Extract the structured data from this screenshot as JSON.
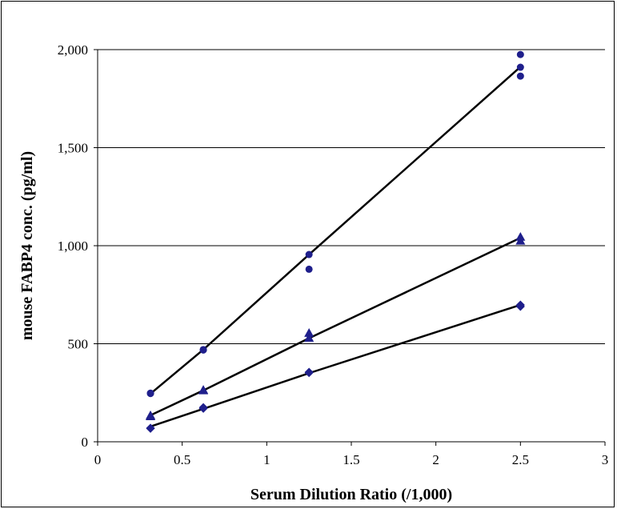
{
  "chart_data": {
    "type": "scatter",
    "title": "",
    "xlabel": "Serum Dilution Ratio (/1,000)",
    "ylabel": "mouse FABP4 conc. (pg/ml)",
    "xlim": [
      0,
      3
    ],
    "ylim": [
      0,
      2000
    ],
    "x_ticks": [
      0,
      0.5,
      1,
      1.5,
      2,
      2.5,
      3
    ],
    "x_tick_labels": [
      "0",
      "0.5",
      "1",
      "1.5",
      "2",
      "2.5",
      "3"
    ],
    "y_ticks": [
      0,
      500,
      1000,
      1500,
      2000
    ],
    "y_tick_labels": [
      "0",
      "500",
      "1,000",
      "1,500",
      "2,000"
    ],
    "grid": "horizontal",
    "legend": "none",
    "series": [
      {
        "marker": "circle",
        "color": "#1f1f8c",
        "points": [
          [
            0.3125,
            248
          ],
          [
            0.3125,
            246
          ],
          [
            0.625,
            470
          ],
          [
            0.625,
            468
          ],
          [
            1.25,
            955
          ],
          [
            1.25,
            880
          ],
          [
            2.5,
            1975
          ],
          [
            2.5,
            1910
          ],
          [
            2.5,
            1865
          ]
        ],
        "fit_line": [
          [
            0.3125,
            245
          ],
          [
            0.625,
            470
          ],
          [
            1.25,
            955
          ],
          [
            2.5,
            1912
          ]
        ]
      },
      {
        "marker": "triangle",
        "color": "#1f1f8c",
        "points": [
          [
            0.3125,
            135
          ],
          [
            0.3125,
            130
          ],
          [
            0.625,
            265
          ],
          [
            0.625,
            262
          ],
          [
            1.25,
            555
          ],
          [
            1.25,
            530
          ],
          [
            2.5,
            1045
          ],
          [
            2.5,
            1025
          ]
        ],
        "fit_line": [
          [
            0.3125,
            135
          ],
          [
            0.625,
            262
          ],
          [
            1.25,
            528
          ],
          [
            2.5,
            1040
          ]
        ]
      },
      {
        "marker": "diamond",
        "color": "#1f1f8c",
        "points": [
          [
            0.3125,
            70
          ],
          [
            0.3125,
            68
          ],
          [
            0.625,
            175
          ],
          [
            0.625,
            170
          ],
          [
            1.25,
            355
          ],
          [
            1.25,
            352
          ],
          [
            2.5,
            698
          ],
          [
            2.5,
            690
          ]
        ],
        "fit_line": [
          [
            0.3125,
            78
          ],
          [
            0.625,
            168
          ],
          [
            1.25,
            350
          ],
          [
            2.5,
            698
          ]
        ]
      }
    ]
  }
}
